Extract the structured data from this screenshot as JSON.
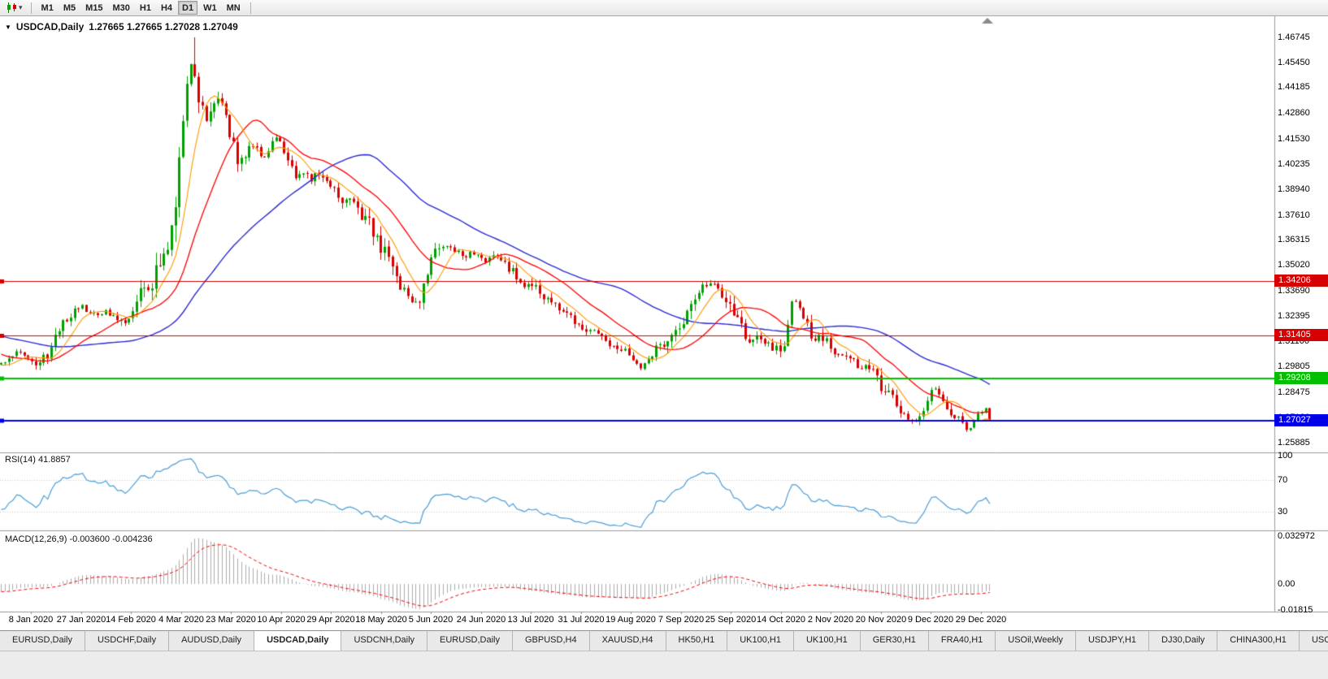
{
  "toolbar": {
    "timeframes": [
      "M1",
      "M5",
      "M15",
      "M30",
      "H1",
      "H4",
      "D1",
      "W1",
      "MN"
    ],
    "active_timeframe": "D1"
  },
  "chart_header": {
    "symbol": "USDCAD,Daily",
    "ohlc": "1.27665 1.27665 1.27028 1.27049"
  },
  "rsi_panel": {
    "label": "RSI(14) 41.8857"
  },
  "macd_panel": {
    "label": "MACD(12,26,9) -0.003600 -0.004236"
  },
  "tabs": {
    "items": [
      "EURUSD,Daily",
      "USDCHF,Daily",
      "AUDUSD,Daily",
      "USDCAD,Daily",
      "USDCNH,Daily",
      "EURUSD,Daily",
      "GBPUSD,H4",
      "XAUUSD,H4",
      "HK50,H1",
      "UK100,H1",
      "UK100,H1",
      "GER30,H1",
      "FRA40,H1",
      "USOil,Weekly",
      "USDJPY,H1",
      "DJ30,Daily",
      "CHINA300,H1",
      "USOil,"
    ],
    "active_index": 3
  },
  "chart_data": {
    "type": "candlestick",
    "symbol": "USDCAD",
    "timeframe": "Daily",
    "last_ohlc": {
      "open": 1.27665,
      "high": 1.27665,
      "low": 1.27028,
      "close": 1.27049
    },
    "high_extreme": 1.46745,
    "low_floor": 1.2615,
    "y_axis_ticks": [
      "1.46745",
      "1.45450",
      "1.44185",
      "1.42860",
      "1.41530",
      "1.40235",
      "1.38940",
      "1.37610",
      "1.36315",
      "1.35020",
      "1.33690",
      "1.32395",
      "1.31100",
      "1.29805",
      "1.28475",
      "1.27180",
      "1.25885"
    ],
    "x_axis_labels": [
      "8 Jan 2020",
      "27 Jan 2020",
      "14 Feb 2020",
      "4 Mar 2020",
      "23 Mar 2020",
      "10 Apr 2020",
      "29 Apr 2020",
      "18 May 2020",
      "5 Jun 2020",
      "24 Jun 2020",
      "13 Jul 2020",
      "31 Jul 2020",
      "19 Aug 2020",
      "7 Sep 2020",
      "25 Sep 2020",
      "14 Oct 2020",
      "2 Nov 2020",
      "20 Nov 2020",
      "9 Dec 2020",
      "29 Dec 2020"
    ],
    "horizontal_lines": [
      {
        "value": 1.34206,
        "label": "1.34206",
        "color": "#d60000",
        "width": 1
      },
      {
        "value": 1.31405,
        "label": "1.31405",
        "color": "#d60000",
        "width": 1
      },
      {
        "value": 1.29208,
        "label": "1.29208",
        "color": "#00c000",
        "width": 2
      },
      {
        "value": 1.27027,
        "label": "1.27027",
        "color": "#0000e6",
        "width": 2
      }
    ],
    "colors": {
      "bull": "#00a000",
      "bear": "#d80000",
      "ma_fast": "#ff9900",
      "ma_mid": "#ff0000",
      "ma_slow": "#2b2bd4",
      "rsi": "#4a9ed8",
      "macd_hist": "#ababab",
      "macd_signal": "#ff0000",
      "levels": "#c8c8c8"
    },
    "indicators": {
      "moving_averages": [
        {
          "period": 8,
          "color_key": "ma_fast"
        },
        {
          "period": 20,
          "color_key": "ma_mid"
        },
        {
          "period": 50,
          "color_key": "ma_slow"
        }
      ],
      "rsi": {
        "period": 14,
        "current": 41.8857,
        "levels": [
          70,
          30
        ],
        "ticks": [
          "100",
          "70",
          "30"
        ]
      },
      "macd": {
        "fast": 12,
        "slow": 26,
        "signal": 9,
        "current_main": -0.0036,
        "current_signal": -0.004236,
        "ticks": [
          "0.032972",
          "0.00",
          "-0.01815"
        ]
      }
    },
    "price_path_anchors": [
      [
        -290,
        1.331
      ],
      [
        -240,
        1.3265
      ],
      [
        -190,
        1.322
      ],
      [
        -140,
        1.3185
      ],
      [
        -95,
        1.3145
      ],
      [
        -60,
        1.308
      ],
      [
        -30,
        1.3
      ],
      [
        -12,
        1.2972
      ],
      [
        0,
        1.2992
      ],
      [
        10,
        1.3035
      ],
      [
        22,
        1.306
      ],
      [
        34,
        1.303
      ],
      [
        45,
        1.2985
      ],
      [
        55,
        1.3035
      ],
      [
        65,
        1.313
      ],
      [
        78,
        1.322
      ],
      [
        90,
        1.3265
      ],
      [
        100,
        1.3285
      ],
      [
        110,
        1.325
      ],
      [
        120,
        1.3238
      ],
      [
        130,
        1.3258
      ],
      [
        140,
        1.323
      ],
      [
        150,
        1.32
      ],
      [
        158,
        1.3245
      ],
      [
        166,
        1.333
      ],
      [
        174,
        1.3405
      ],
      [
        182,
        1.34
      ],
      [
        190,
        1.3445
      ],
      [
        198,
        1.352
      ],
      [
        206,
        1.366
      ],
      [
        212,
        1.378
      ],
      [
        218,
        1.395
      ],
      [
        224,
        1.418
      ],
      [
        229,
        1.442
      ],
      [
        233,
        1.46
      ],
      [
        237,
        1.45
      ],
      [
        242,
        1.439
      ],
      [
        248,
        1.431
      ],
      [
        255,
        1.425
      ],
      [
        262,
        1.433
      ],
      [
        270,
        1.437
      ],
      [
        277,
        1.426
      ],
      [
        285,
        1.413
      ],
      [
        293,
        1.404
      ],
      [
        301,
        1.407
      ],
      [
        309,
        1.4125
      ],
      [
        317,
        1.4085
      ],
      [
        325,
        1.406
      ],
      [
        333,
        1.413
      ],
      [
        341,
        1.4165
      ],
      [
        349,
        1.409
      ],
      [
        357,
        1.4015
      ],
      [
        365,
        1.395
      ],
      [
        373,
        1.399
      ],
      [
        381,
        1.394
      ],
      [
        389,
        1.3975
      ],
      [
        397,
        1.3935
      ],
      [
        405,
        1.3905
      ],
      [
        413,
        1.387
      ],
      [
        421,
        1.3835
      ],
      [
        429,
        1.387
      ],
      [
        437,
        1.3795
      ],
      [
        445,
        1.3755
      ],
      [
        453,
        1.3705
      ],
      [
        461,
        1.3665
      ],
      [
        469,
        1.3585
      ],
      [
        477,
        1.3505
      ],
      [
        485,
        1.3425
      ],
      [
        493,
        1.339
      ],
      [
        501,
        1.3335
      ],
      [
        509,
        1.33
      ],
      [
        517,
        1.334
      ],
      [
        525,
        1.3475
      ],
      [
        533,
        1.3555
      ],
      [
        541,
        1.3615
      ],
      [
        549,
        1.36
      ],
      [
        557,
        1.3575
      ],
      [
        565,
        1.357
      ],
      [
        573,
        1.354
      ],
      [
        581,
        1.357
      ],
      [
        589,
        1.3555
      ],
      [
        597,
        1.353
      ],
      [
        605,
        1.354
      ],
      [
        613,
        1.3555
      ],
      [
        621,
        1.3505
      ],
      [
        629,
        1.3465
      ],
      [
        637,
        1.343
      ],
      [
        645,
        1.339
      ],
      [
        653,
        1.3408
      ],
      [
        661,
        1.3368
      ],
      [
        669,
        1.333
      ],
      [
        677,
        1.3315
      ],
      [
        685,
        1.3288
      ],
      [
        693,
        1.3262
      ],
      [
        701,
        1.324
      ],
      [
        709,
        1.3212
      ],
      [
        717,
        1.319
      ],
      [
        725,
        1.3162
      ],
      [
        733,
        1.314
      ],
      [
        741,
        1.3118
      ],
      [
        749,
        1.31
      ],
      [
        757,
        1.309
      ],
      [
        765,
        1.3072
      ],
      [
        773,
        1.3038
      ],
      [
        781,
        1.3002
      ],
      [
        789,
        1.2978
      ],
      [
        797,
        1.3012
      ],
      [
        805,
        1.3068
      ],
      [
        813,
        1.3108
      ],
      [
        821,
        1.3125
      ],
      [
        829,
        1.3142
      ],
      [
        837,
        1.3195
      ],
      [
        845,
        1.3242
      ],
      [
        853,
        1.3318
      ],
      [
        861,
        1.3378
      ],
      [
        869,
        1.3398
      ],
      [
        877,
        1.3408
      ],
      [
        885,
        1.3368
      ],
      [
        893,
        1.334
      ],
      [
        901,
        1.3282
      ],
      [
        909,
        1.3182
      ],
      [
        917,
        1.3118
      ],
      [
        925,
        1.3092
      ],
      [
        933,
        1.3128
      ],
      [
        941,
        1.3096
      ],
      [
        949,
        1.3076
      ],
      [
        957,
        1.307
      ],
      [
        965,
        1.3108
      ],
      [
        973,
        1.3325
      ],
      [
        981,
        1.3298
      ],
      [
        989,
        1.3222
      ],
      [
        997,
        1.3148
      ],
      [
        1005,
        1.3118
      ],
      [
        1013,
        1.313
      ],
      [
        1021,
        1.3072
      ],
      [
        1029,
        1.305
      ],
      [
        1037,
        1.303
      ],
      [
        1045,
        1.3012
      ],
      [
        1053,
        1.2992
      ],
      [
        1061,
        1.2986
      ],
      [
        1069,
        1.2964
      ],
      [
        1077,
        1.2926
      ],
      [
        1085,
        1.2872
      ],
      [
        1093,
        1.286
      ],
      [
        1101,
        1.2802
      ],
      [
        1109,
        1.2742
      ],
      [
        1117,
        1.2716
      ],
      [
        1125,
        1.2696
      ],
      [
        1133,
        1.2732
      ],
      [
        1141,
        1.2822
      ],
      [
        1149,
        1.2878
      ],
      [
        1157,
        1.2822
      ],
      [
        1165,
        1.2782
      ],
      [
        1173,
        1.2718
      ],
      [
        1181,
        1.2702
      ],
      [
        1189,
        1.2658
      ],
      [
        1197,
        1.2697
      ],
      [
        1204,
        1.2742
      ],
      [
        1210,
        1.2768
      ],
      [
        1216,
        1.2705
      ]
    ]
  }
}
